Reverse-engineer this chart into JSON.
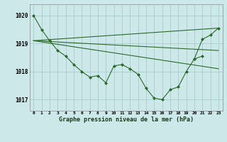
{
  "bg_color": "#cce8e8",
  "grid_color": "#aacccc",
  "line_color": "#2d6a2d",
  "marker_color": "#2d6a2d",
  "title": "Graphe pression niveau de la mer (hPa)",
  "xlim": [
    -0.5,
    23.5
  ],
  "ylim": [
    1016.6,
    1020.4
  ],
  "yticks": [
    1017,
    1018,
    1019,
    1020
  ],
  "xtick_labels": [
    "0",
    "1",
    "2",
    "3",
    "4",
    "5",
    "6",
    "7",
    "8",
    "9",
    "10",
    "11",
    "12",
    "13",
    "14",
    "15",
    "16",
    "17",
    "18",
    "19",
    "20",
    "21",
    "22",
    "23"
  ],
  "series_main": {
    "x": [
      0,
      1,
      2,
      3,
      4,
      5,
      6,
      7,
      8,
      9,
      10,
      11,
      12,
      13,
      14,
      15,
      16,
      17,
      18,
      19,
      20,
      21
    ],
    "y": [
      1020.0,
      1019.5,
      1019.1,
      1018.75,
      1018.55,
      1018.25,
      1018.0,
      1017.8,
      1017.85,
      1017.6,
      1018.2,
      1018.25,
      1018.1,
      1017.9,
      1017.4,
      1017.05,
      1017.0,
      1017.35,
      1017.45,
      1018.0,
      1018.45,
      1018.55
    ]
  },
  "series_lines": [
    {
      "x": [
        0,
        23
      ],
      "y": [
        1019.1,
        1019.55
      ]
    },
    {
      "x": [
        0,
        23
      ],
      "y": [
        1019.1,
        1018.75
      ]
    },
    {
      "x": [
        0,
        23
      ],
      "y": [
        1019.1,
        1018.1
      ]
    }
  ],
  "series_end": {
    "x": [
      20,
      21,
      22,
      23
    ],
    "y": [
      1018.45,
      1019.15,
      1019.3,
      1019.55
    ]
  }
}
